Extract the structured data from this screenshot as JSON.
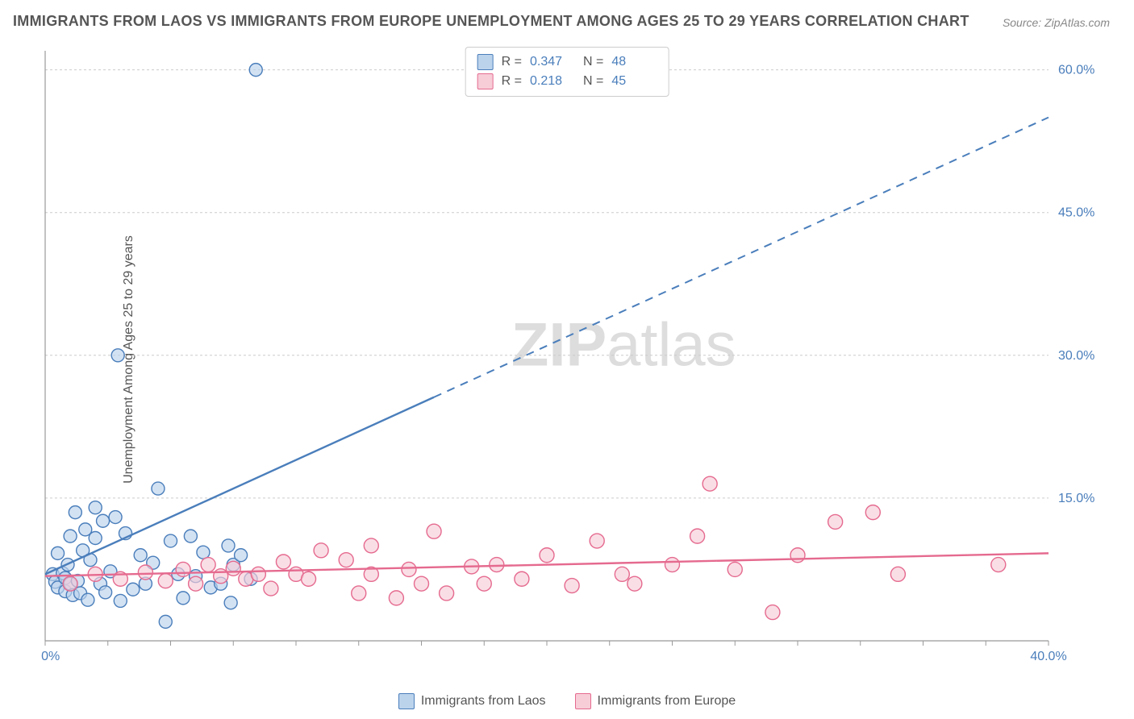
{
  "title": "IMMIGRANTS FROM LAOS VS IMMIGRANTS FROM EUROPE UNEMPLOYMENT AMONG AGES 25 TO 29 YEARS CORRELATION CHART",
  "source": "Source: ZipAtlas.com",
  "ylabel": "Unemployment Among Ages 25 to 29 years",
  "watermark_bold": "ZIP",
  "watermark_rest": "atlas",
  "chart": {
    "type": "scatter",
    "xlim": [
      0,
      40
    ],
    "ylim": [
      0,
      62
    ],
    "xtick_step": 2.5,
    "ytick_gridlines": [
      15,
      30,
      45,
      60
    ],
    "x_labels": [
      {
        "v": 0,
        "t": "0.0%"
      },
      {
        "v": 40,
        "t": "40.0%"
      }
    ],
    "y_labels": [
      {
        "v": 15,
        "t": "15.0%"
      },
      {
        "v": 30,
        "t": "30.0%"
      },
      {
        "v": 45,
        "t": "45.0%"
      },
      {
        "v": 60,
        "t": "60.0%"
      }
    ],
    "background_color": "#ffffff",
    "grid_color": "#cccccc",
    "axis_color": "#999999",
    "series": [
      {
        "name": "Immigrants from Laos",
        "color_fill": "#bcd3ec",
        "color_stroke": "#4a7ebb",
        "R": "0.347",
        "N": "48",
        "marker_radius": 8,
        "points": [
          [
            0.3,
            7.0
          ],
          [
            0.4,
            6.2
          ],
          [
            0.5,
            5.6
          ],
          [
            0.5,
            9.2
          ],
          [
            0.7,
            7.1
          ],
          [
            0.8,
            6.6
          ],
          [
            0.8,
            5.2
          ],
          [
            0.9,
            8.0
          ],
          [
            1.0,
            6.0
          ],
          [
            1.0,
            11.0
          ],
          [
            1.1,
            4.8
          ],
          [
            1.2,
            13.5
          ],
          [
            1.3,
            6.3
          ],
          [
            1.4,
            5.0
          ],
          [
            1.5,
            9.5
          ],
          [
            1.6,
            11.7
          ],
          [
            1.7,
            4.3
          ],
          [
            1.8,
            8.5
          ],
          [
            2.0,
            10.8
          ],
          [
            2.0,
            14.0
          ],
          [
            2.2,
            6.0
          ],
          [
            2.3,
            12.6
          ],
          [
            2.4,
            5.1
          ],
          [
            2.6,
            7.3
          ],
          [
            2.8,
            13.0
          ],
          [
            2.9,
            30.0
          ],
          [
            3.0,
            4.2
          ],
          [
            3.2,
            11.3
          ],
          [
            3.5,
            5.4
          ],
          [
            3.8,
            9.0
          ],
          [
            4.0,
            6.0
          ],
          [
            4.3,
            8.2
          ],
          [
            4.5,
            16.0
          ],
          [
            4.8,
            2.0
          ],
          [
            5.0,
            10.5
          ],
          [
            5.3,
            7.0
          ],
          [
            5.5,
            4.5
          ],
          [
            5.8,
            11.0
          ],
          [
            6.0,
            6.8
          ],
          [
            6.3,
            9.3
          ],
          [
            6.6,
            5.6
          ],
          [
            7.0,
            6.0
          ],
          [
            7.3,
            10.0
          ],
          [
            7.4,
            4.0
          ],
          [
            7.5,
            8.0
          ],
          [
            7.8,
            9.0
          ],
          [
            8.2,
            6.5
          ],
          [
            8.4,
            60.0
          ]
        ],
        "trend": {
          "x1": 0,
          "y1": 7.0,
          "x2": 40,
          "y2": 55.0,
          "solid_until_x": 15.5
        }
      },
      {
        "name": "Immigrants from Europe",
        "color_fill": "#f7cdd8",
        "color_stroke": "#e56a8f",
        "R": "0.218",
        "N": "45",
        "marker_radius": 9,
        "points": [
          [
            1.0,
            6.0
          ],
          [
            2.0,
            7.0
          ],
          [
            3.0,
            6.5
          ],
          [
            4.0,
            7.2
          ],
          [
            4.8,
            6.3
          ],
          [
            5.5,
            7.5
          ],
          [
            6.0,
            6.0
          ],
          [
            6.5,
            8.0
          ],
          [
            7.0,
            6.8
          ],
          [
            7.5,
            7.6
          ],
          [
            8.0,
            6.5
          ],
          [
            8.5,
            7.0
          ],
          [
            9.0,
            5.5
          ],
          [
            9.5,
            8.3
          ],
          [
            10.0,
            7.0
          ],
          [
            10.5,
            6.5
          ],
          [
            11.0,
            9.5
          ],
          [
            12.0,
            8.5
          ],
          [
            12.5,
            5.0
          ],
          [
            13.0,
            7.0
          ],
          [
            13.0,
            10.0
          ],
          [
            14.0,
            4.5
          ],
          [
            14.5,
            7.5
          ],
          [
            15.0,
            6.0
          ],
          [
            15.5,
            11.5
          ],
          [
            16.0,
            5.0
          ],
          [
            17.0,
            7.8
          ],
          [
            17.5,
            6.0
          ],
          [
            18.0,
            8.0
          ],
          [
            19.0,
            6.5
          ],
          [
            20.0,
            9.0
          ],
          [
            21.0,
            5.8
          ],
          [
            22.0,
            10.5
          ],
          [
            23.0,
            7.0
          ],
          [
            23.5,
            6.0
          ],
          [
            25.0,
            8.0
          ],
          [
            26.0,
            11.0
          ],
          [
            26.5,
            16.5
          ],
          [
            27.5,
            7.5
          ],
          [
            29.0,
            3.0
          ],
          [
            30.0,
            9.0
          ],
          [
            31.5,
            12.5
          ],
          [
            33.0,
            13.5
          ],
          [
            34.0,
            7.0
          ],
          [
            38.0,
            8.0
          ]
        ],
        "trend": {
          "x1": 0,
          "y1": 6.8,
          "x2": 40,
          "y2": 9.2,
          "solid_until_x": 40
        }
      }
    ]
  },
  "legend_bottom": [
    {
      "swatch": "blue",
      "label": "Immigrants from Laos"
    },
    {
      "swatch": "pink",
      "label": "Immigrants from Europe"
    }
  ],
  "stats_box": [
    {
      "swatch": "blue",
      "r": "0.347",
      "n": "48"
    },
    {
      "swatch": "pink",
      "r": "0.218",
      "n": "45"
    }
  ]
}
